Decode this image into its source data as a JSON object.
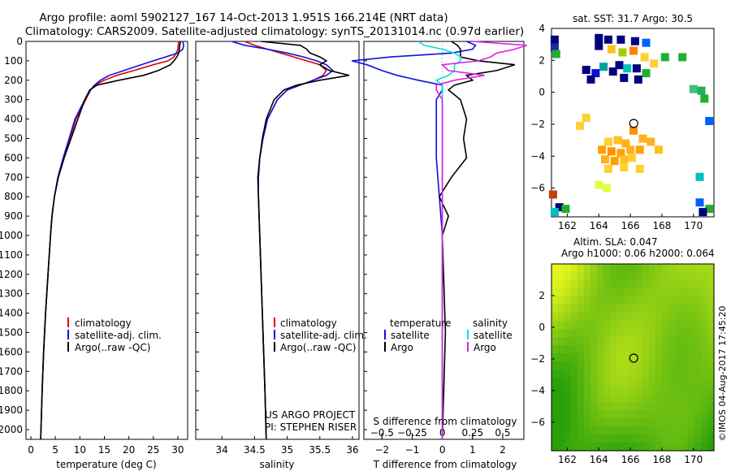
{
  "header": {
    "line1": "Argo profile: aoml 5902127_167 14-Oct-2013 1.951S 166.214E (NRT data)",
    "line2": "Climatology: CARS2009. Satellite-adjusted climatology: synTS_20131014.nc (0.97d earlier)"
  },
  "colors": {
    "climatology": "#e00000",
    "satellite": "#1010e0",
    "argo": "#000000",
    "sal_satellite": "#00e0e0",
    "sal_argo": "#e020e0"
  },
  "chart_data": [
    {
      "type": "line",
      "title": "",
      "xlabel": "temperature (deg C)",
      "ylabel": "",
      "xlim": [
        -1,
        32
      ],
      "ylim": [
        2050,
        0
      ],
      "xticks": [
        0,
        5,
        10,
        15,
        20,
        25,
        30
      ],
      "yticks": [
        0,
        100,
        200,
        300,
        400,
        500,
        600,
        700,
        800,
        900,
        1000,
        1100,
        1200,
        1300,
        1400,
        1500,
        1600,
        1700,
        1800,
        1900,
        2000
      ],
      "legend": [
        "climatology",
        "satellite-adj. clim.",
        "Argo(..raw -QC)"
      ],
      "series": [
        {
          "name": "climatology",
          "color": "#e00000",
          "depth": [
            0,
            20,
            40,
            60,
            80,
            100,
            120,
            150,
            175,
            200,
            225,
            250,
            300,
            400,
            500,
            600,
            700,
            800,
            900,
            1000,
            1200,
            1400,
            1600,
            1800,
            2050
          ],
          "values": [
            30.2,
            30.1,
            30.0,
            29.7,
            29.2,
            28.0,
            25.0,
            21.0,
            17.5,
            15.0,
            13.0,
            12.2,
            11.2,
            9.2,
            8.0,
            6.8,
            5.6,
            4.8,
            4.3,
            4.0,
            3.5,
            3.0,
            2.6,
            2.3,
            2.0
          ]
        },
        {
          "name": "satellite-adj. clim.",
          "color": "#1010e0",
          "depth": [
            0,
            20,
            40,
            60,
            80,
            100,
            120,
            150,
            175,
            200,
            225,
            250,
            300,
            400,
            500,
            600,
            700,
            800,
            900,
            1000,
            1200,
            1400,
            1600,
            1800,
            2050
          ],
          "values": [
            31.0,
            31.2,
            31.0,
            30.0,
            27.5,
            25.0,
            22.5,
            19.0,
            16.0,
            14.2,
            13.0,
            12.2,
            11.0,
            9.0,
            7.8,
            6.6,
            5.5,
            4.8,
            4.3,
            4.0,
            3.5,
            3.0,
            2.6,
            2.3,
            2.0
          ]
        },
        {
          "name": "Argo(..raw -QC)",
          "color": "#000000",
          "depth": [
            0,
            20,
            40,
            60,
            80,
            100,
            120,
            150,
            175,
            200,
            225,
            250,
            300,
            400,
            500,
            600,
            700,
            800,
            900,
            1000,
            1200,
            1400,
            1600,
            1800,
            2050
          ],
          "values": [
            30.5,
            30.4,
            30.3,
            30.2,
            29.8,
            29.2,
            28.5,
            26.0,
            23.0,
            18.0,
            13.5,
            12.0,
            11.0,
            9.6,
            8.2,
            6.8,
            5.6,
            4.8,
            4.3,
            4.0,
            3.5,
            3.0,
            2.6,
            2.3,
            2.0
          ]
        }
      ]
    },
    {
      "type": "line",
      "title": "",
      "xlabel": "salinity",
      "ylabel": "",
      "xlim": [
        33.6,
        36.1
      ],
      "ylim": [
        2050,
        0
      ],
      "xticks": [
        34,
        34.5,
        35,
        35.5,
        36
      ],
      "legend": [
        "climatology",
        "satellite-adj. clim.",
        "Argo(..raw -QC)"
      ],
      "annotations": [
        "US ARGO PROJECT",
        "PI: STEPHEN RISER"
      ],
      "series": [
        {
          "name": "climatology",
          "color": "#e00000",
          "depth": [
            0,
            20,
            40,
            60,
            80,
            100,
            120,
            150,
            175,
            200,
            225,
            250,
            300,
            400,
            500,
            600,
            700,
            800,
            900,
            1000,
            1200,
            1400,
            1600,
            1800,
            2050
          ],
          "values": [
            34.35,
            34.5,
            34.7,
            34.9,
            35.1,
            35.3,
            35.5,
            35.6,
            35.55,
            35.4,
            35.2,
            35.0,
            34.85,
            34.7,
            34.63,
            34.58,
            34.56,
            34.56,
            34.57,
            34.58,
            34.6,
            34.62,
            34.64,
            34.66,
            34.68
          ]
        },
        {
          "name": "satellite-adj. clim.",
          "color": "#1010e0",
          "depth": [
            0,
            20,
            40,
            60,
            80,
            100,
            120,
            150,
            175,
            200,
            225,
            250,
            300,
            400,
            500,
            600,
            700,
            800,
            900,
            1000,
            1200,
            1400,
            1600,
            1800,
            2050
          ],
          "values": [
            34.15,
            34.35,
            34.7,
            35.0,
            35.25,
            35.45,
            35.6,
            35.7,
            35.6,
            35.4,
            35.2,
            35.0,
            34.85,
            34.7,
            34.63,
            34.58,
            34.56,
            34.56,
            34.57,
            34.58,
            34.6,
            34.62,
            34.64,
            34.66,
            34.68
          ]
        },
        {
          "name": "Argo(..raw -QC)",
          "color": "#000000",
          "depth": [
            0,
            20,
            40,
            60,
            80,
            100,
            120,
            150,
            175,
            200,
            225,
            250,
            300,
            400,
            500,
            600,
            700,
            800,
            900,
            1000,
            1200,
            1400,
            1600,
            1800,
            2050
          ],
          "values": [
            34.6,
            35.2,
            35.3,
            35.35,
            35.5,
            35.6,
            35.5,
            35.65,
            35.95,
            35.5,
            35.15,
            34.95,
            34.8,
            34.68,
            34.62,
            34.58,
            34.55,
            34.56,
            34.57,
            34.58,
            34.6,
            34.62,
            34.64,
            34.66,
            34.68
          ]
        }
      ]
    },
    {
      "type": "line",
      "title": "S difference from climatology",
      "xlabel": "T difference from climatology",
      "ylabel": "",
      "xlim": [
        -2.6,
        2.7
      ],
      "ylim": [
        2050,
        0
      ],
      "xticks": [
        -2,
        -1,
        0,
        1,
        2
      ],
      "top_axis_label": "S difference from climatology",
      "top_xticks": [
        -0.5,
        -0.25,
        0,
        0.25,
        0.5
      ],
      "top_xlim": [
        -0.65,
        0.675
      ],
      "legend_title_left": "temperature",
      "legend_title_right": "salinity",
      "legend_left": [
        "satellite",
        "Argo"
      ],
      "legend_right": [
        "satellite",
        "Argo"
      ],
      "series": [
        {
          "name": "temperature satellite",
          "axis": "T",
          "color": "#1010e0",
          "depth": [
            0,
            20,
            40,
            60,
            80,
            100,
            120,
            150,
            175,
            200,
            225,
            250,
            300,
            400,
            500,
            600,
            800,
            1000,
            1500,
            2050
          ],
          "values": [
            0.8,
            1.1,
            1.0,
            0.3,
            -1.7,
            -3.0,
            -2.5,
            -2.0,
            -1.5,
            -0.8,
            0.0,
            0.0,
            -0.2,
            -0.2,
            -0.2,
            -0.2,
            -0.1,
            0.0,
            0.0,
            0.0
          ]
        },
        {
          "name": "temperature Argo",
          "axis": "T",
          "color": "#000000",
          "depth": [
            0,
            20,
            40,
            60,
            80,
            100,
            120,
            150,
            175,
            200,
            225,
            250,
            300,
            400,
            500,
            600,
            700,
            800,
            900,
            1000,
            1500,
            2050
          ],
          "values": [
            0.3,
            0.5,
            0.6,
            0.6,
            0.6,
            1.2,
            2.4,
            1.8,
            0.8,
            1.0,
            0.4,
            0.2,
            0.6,
            0.8,
            0.7,
            0.8,
            0.3,
            -0.1,
            0.2,
            0.0,
            0.1,
            0.0
          ]
        },
        {
          "name": "salinity satellite",
          "axis": "S",
          "color": "#00e0e0",
          "depth": [
            0,
            20,
            40,
            60,
            80,
            100,
            120,
            150,
            175,
            200,
            225,
            250,
            300,
            400,
            600,
            1000,
            2050
          ],
          "values": [
            -0.2,
            -0.15,
            0.0,
            0.1,
            0.15,
            0.15,
            0.1,
            0.1,
            0.05,
            -0.05,
            0.0,
            0.0,
            0.0,
            0.0,
            0.0,
            0.0,
            0.0
          ]
        },
        {
          "name": "salinity Argo",
          "axis": "S",
          "color": "#e020e0",
          "depth": [
            0,
            20,
            40,
            60,
            80,
            100,
            120,
            150,
            175,
            200,
            225,
            250,
            300,
            400,
            600,
            1000,
            2050
          ],
          "values": [
            0.25,
            0.7,
            0.6,
            0.45,
            0.4,
            0.3,
            0.0,
            0.05,
            0.35,
            0.1,
            -0.05,
            -0.05,
            0.0,
            0.0,
            0.0,
            0.0,
            0.0
          ]
        }
      ]
    },
    {
      "type": "heatmap",
      "title": "sat. SST: 31.7 Argo: 30.5",
      "xlim": [
        161,
        171.3
      ],
      "ylim": [
        -7.8,
        4
      ],
      "xticks": [
        162,
        164,
        166,
        168,
        170
      ],
      "yticks": [
        4,
        2,
        0,
        -2,
        -4,
        -6
      ],
      "argo_position": [
        166.214,
        -1.951
      ]
    },
    {
      "type": "heatmap",
      "title": "Altim. SLA: 0.047",
      "subtitle": "Argo h1000: 0.06 h2000: 0.064",
      "xlim": [
        161,
        171.3
      ],
      "ylim": [
        -7.8,
        4
      ],
      "xticks": [
        162,
        164,
        166,
        168,
        170
      ],
      "yticks": [
        2,
        0,
        -2,
        -4,
        -6
      ],
      "argo_position": [
        166.214,
        -1.951
      ]
    }
  ],
  "watermark": "©IMOS 04-Aug-2017 17:45:20"
}
